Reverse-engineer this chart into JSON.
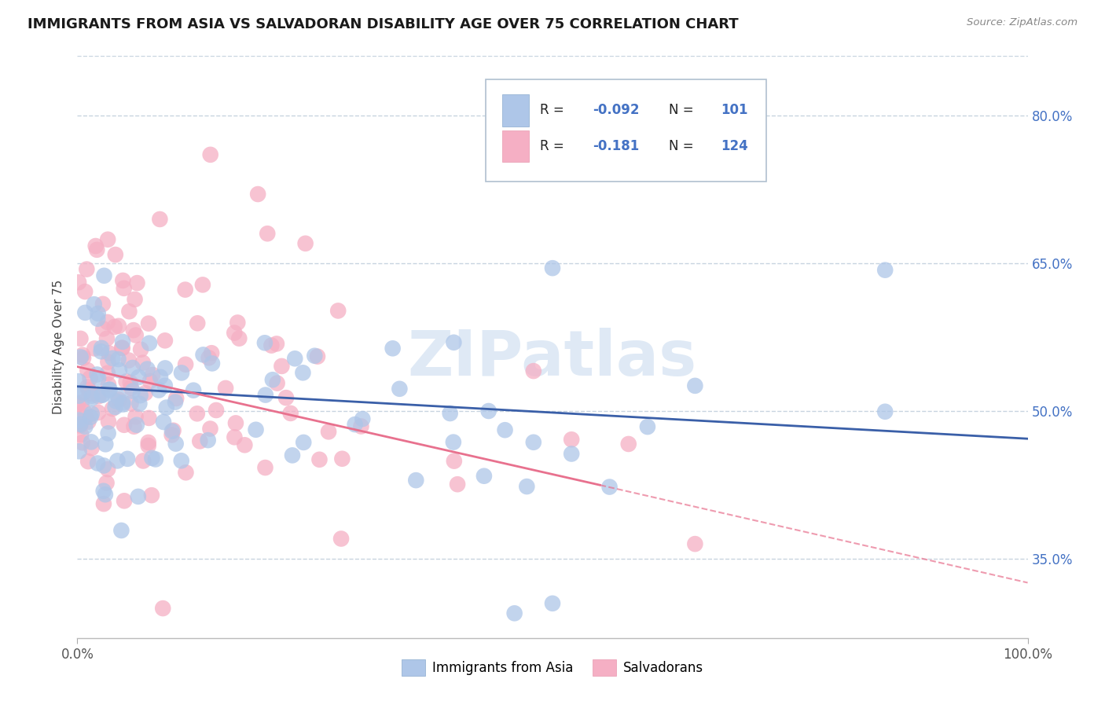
{
  "title": "IMMIGRANTS FROM ASIA VS SALVADORAN DISABILITY AGE OVER 75 CORRELATION CHART",
  "source_text": "Source: ZipAtlas.com",
  "ylabel": "Disability Age Over 75",
  "xlim": [
    0.0,
    1.0
  ],
  "ylim": [
    0.27,
    0.86
  ],
  "yticks": [
    0.35,
    0.5,
    0.65,
    0.8
  ],
  "ytick_labels": [
    "35.0%",
    "50.0%",
    "65.0%",
    "80.0%"
  ],
  "xticks": [
    0.0,
    1.0
  ],
  "xtick_labels": [
    "0.0%",
    "100.0%"
  ],
  "series1_label": "Immigrants from Asia",
  "series1_color": "#aec6e8",
  "series1_line_color": "#3a5fa8",
  "series1_R": -0.092,
  "series1_N": 101,
  "series2_label": "Salvadorans",
  "series2_color": "#f5afc4",
  "series2_line_color": "#e8718e",
  "series2_R": -0.181,
  "series2_N": 124,
  "watermark": "ZIPatlas",
  "background_color": "#ffffff",
  "grid_color": "#c8d4e0",
  "title_fontsize": 13,
  "axis_label_fontsize": 11,
  "tick_fontsize": 12,
  "legend_text_color": "#222222",
  "legend_value_color": "#4472c4"
}
